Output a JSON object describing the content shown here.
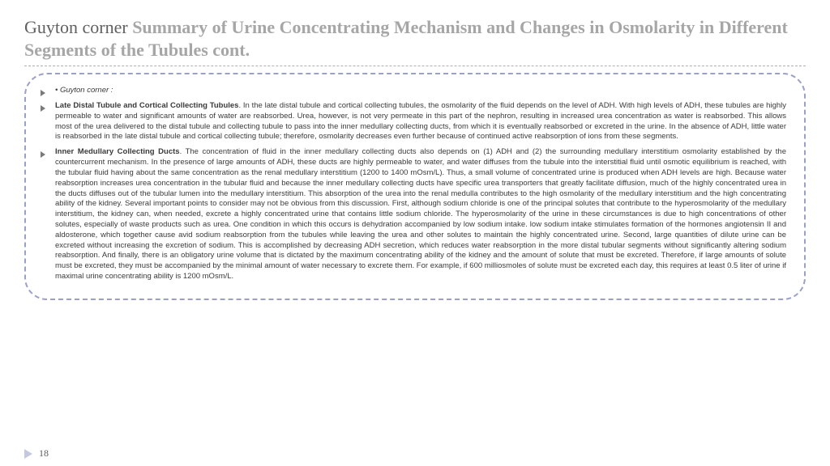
{
  "title": {
    "lead": "Guyton corner ",
    "rest": "Summary of Urine Concentrating Mechanism and Changes in Osmolarity in Different Segments of the Tubules cont."
  },
  "bullets": [
    {
      "italic": true,
      "lead": "",
      "body": "• Guyton corner :"
    },
    {
      "italic": false,
      "lead": "Late Distal Tubule and Cortical Collecting Tubules",
      "body": ". In the late distal tubule and cortical collecting tubules, the osmolarity of the fluid depends on the level of ADH. With high levels of ADH, these tubules are highly permeable to water and significant amounts of water are reabsorbed. Urea, however, is not very permeate in this part of the nephron, resulting in increased urea concentration as water is reabsorbed. This allows most of the urea delivered to the distal tubule and collecting tubule to pass into the inner medullary collecting ducts, from which it is eventually reabsorbed or excreted in the urine. In the absence of ADH, little water is reabsorbed in the late distal tubule and cortical collecting tubule; therefore, osmolarity decreases even further because of continued active reabsorption of ions from these segments."
    },
    {
      "italic": false,
      "lead": "Inner Medullary Collecting Ducts",
      "body": ". The concentration of fluid in the inner medullary collecting ducts also depends on (1) ADH and (2) the surrounding medullary interstitium osmolarity established by the countercurrent mechanism. In the presence of large amounts of ADH, these ducts are highly permeable to water, and water diffuses from the tubule into the interstitial fluid until osmotic equilibrium is reached, with the tubular fluid having about the same concentration as the renal medullary interstitium (1200 to 1400 mOsm/L). Thus, a small volume of concentrated urine is produced when ADH levels are high. Because water reabsorption increases urea concentration in the tubular fluid and because the inner medullary collecting ducts have specific urea transporters that greatly facilitate diffusion, much of the highly concentrated urea in the ducts diffuses out of the tubular lumen into the medullary interstitium. This absorption of the urea into the renal medulla contributes to the high osmolarity of the medullary interstitium and the high concentrating ability of the kidney. Several important points to consider may not be obvious from this discussion. First, although sodium chloride is one of the principal solutes that contribute to the hyperosmolarity of the medullary interstitium, the kidney can, when needed, excrete a highly concentrated urine that contains little sodium chloride. The hyperosmolarity of the urine in these circumstances is due to high concentrations of other solutes, especially of waste products such as urea. One condition in which this occurs is dehydration accompanied by low sodium intake. low sodium intake stimulates formation of the hormones angiotensin II and aldosterone, which together cause avid sodium reabsorption from the tubules while leaving the urea and other solutes to maintain the highly concentrated urine. Second, large quantities of dilute urine can be excreted without increasing the excretion of sodium. This is accomplished by decreasing ADH secretion, which reduces water reabsorption in the more distal tubular segments without significantly altering sodium reabsorption. And finally, there is an obligatory urine volume that is dictated by the maximum concentrating ability of the kidney and the amount of solute that must be excreted. Therefore, if large amounts of solute must be excreted, they must be accompanied by the minimal amount of water necessary to excrete them. For example, if 600 milliosmoles of solute must be excreted each day, this requires at least 0.5 liter of urine if maximal urine concentrating ability is 1200 mOsm/L."
    }
  ],
  "pageNumber": "18",
  "colors": {
    "titleLead": "#606060",
    "titleRest": "#a6a6a6",
    "boxBorder": "#9aa0c7",
    "bulletArrow": "#7a7a7a",
    "bodyText": "#3a3a3a",
    "footerArrow": "#c5c9de"
  }
}
